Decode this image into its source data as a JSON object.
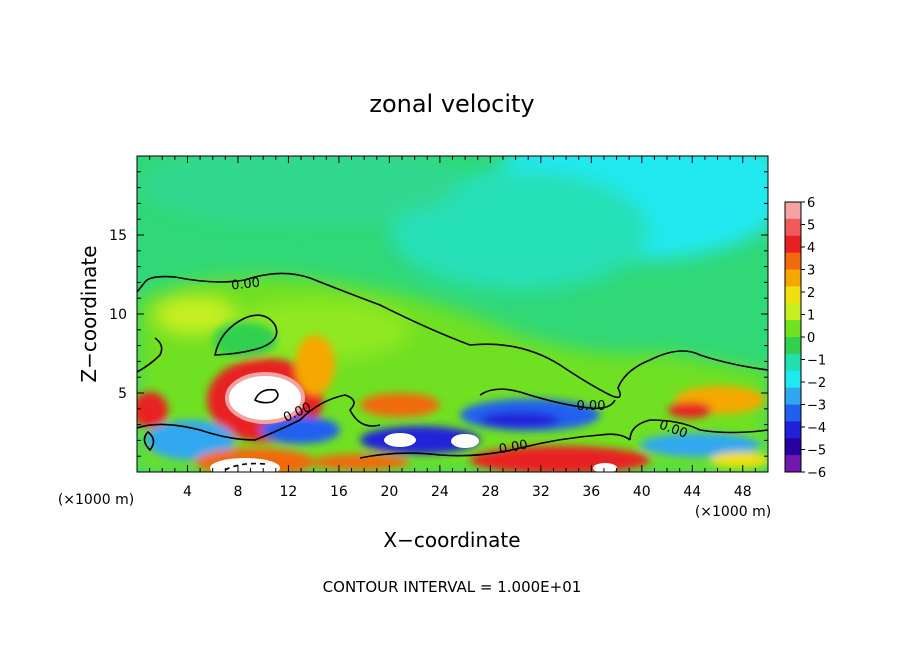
{
  "chart_data": {
    "type": "heatmap",
    "title": "zonal velocity",
    "xlabel": "X−coordinate",
    "ylabel": "Z−coordinate",
    "x_unit_left": "(×1000 m)",
    "x_unit_right": "(×1000 m)",
    "footer": "CONTOUR INTERVAL = 1.000E+01",
    "xlim": [
      0,
      50
    ],
    "ylim": [
      0,
      20
    ],
    "x_ticks": [
      4,
      8,
      12,
      16,
      20,
      24,
      28,
      32,
      36,
      40,
      44,
      48
    ],
    "x_tick_labels": [
      "4",
      "8",
      "12",
      "16",
      "20",
      "24",
      "28",
      "32",
      "36",
      "40",
      "44",
      "48"
    ],
    "y_ticks": [
      5,
      10,
      15
    ],
    "y_tick_labels": [
      "5",
      "10",
      "15"
    ],
    "colorbar": {
      "min": -6,
      "max": 6,
      "labels": [
        "6",
        "5",
        "4",
        "3",
        "2",
        "1",
        "0",
        "−1",
        "−2",
        "−3",
        "−4",
        "−5",
        "−6"
      ],
      "colors": [
        "#f4a3a3",
        "#f05a5a",
        "#e82020",
        "#f06a10",
        "#f5a800",
        "#f0e010",
        "#c8f020",
        "#70e020",
        "#30d050",
        "#20e0b0",
        "#20e8f0",
        "#30a8f0",
        "#2060f0",
        "#2020d8",
        "#2800a0",
        "#7018b0"
      ]
    },
    "contour_labels": [
      "0.00",
      "0.00",
      "0.00",
      "0.00",
      "0.00"
    ]
  }
}
